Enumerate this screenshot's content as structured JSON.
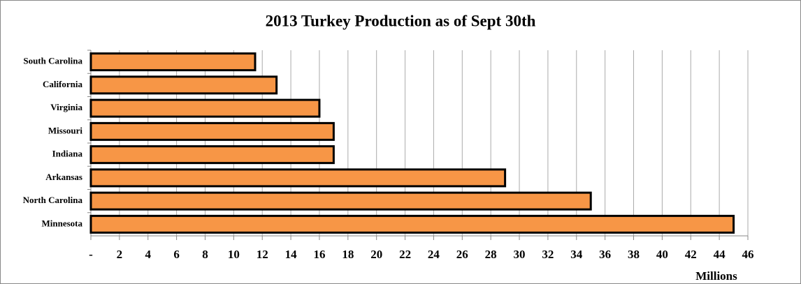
{
  "chart_data": {
    "type": "hbar",
    "title": "2013 Turkey Production as of Sept 30th",
    "categories": [
      "South Carolina",
      "California",
      "Virginia",
      "Missouri",
      "Indiana",
      "Arkansas",
      "North Carolina",
      "Minnesota"
    ],
    "values": [
      11.5,
      13,
      16,
      17,
      17,
      29,
      35,
      45
    ],
    "color": "#f79646",
    "xlabel": "Millions",
    "xlim": [
      0,
      46
    ],
    "xticks": [
      {
        "value": 0,
        "label": "-"
      },
      2,
      4,
      6,
      8,
      10,
      12,
      14,
      16,
      18,
      20,
      22,
      24,
      26,
      28,
      30,
      32,
      34,
      36,
      38,
      40,
      42,
      44,
      46
    ],
    "grid": true
  }
}
